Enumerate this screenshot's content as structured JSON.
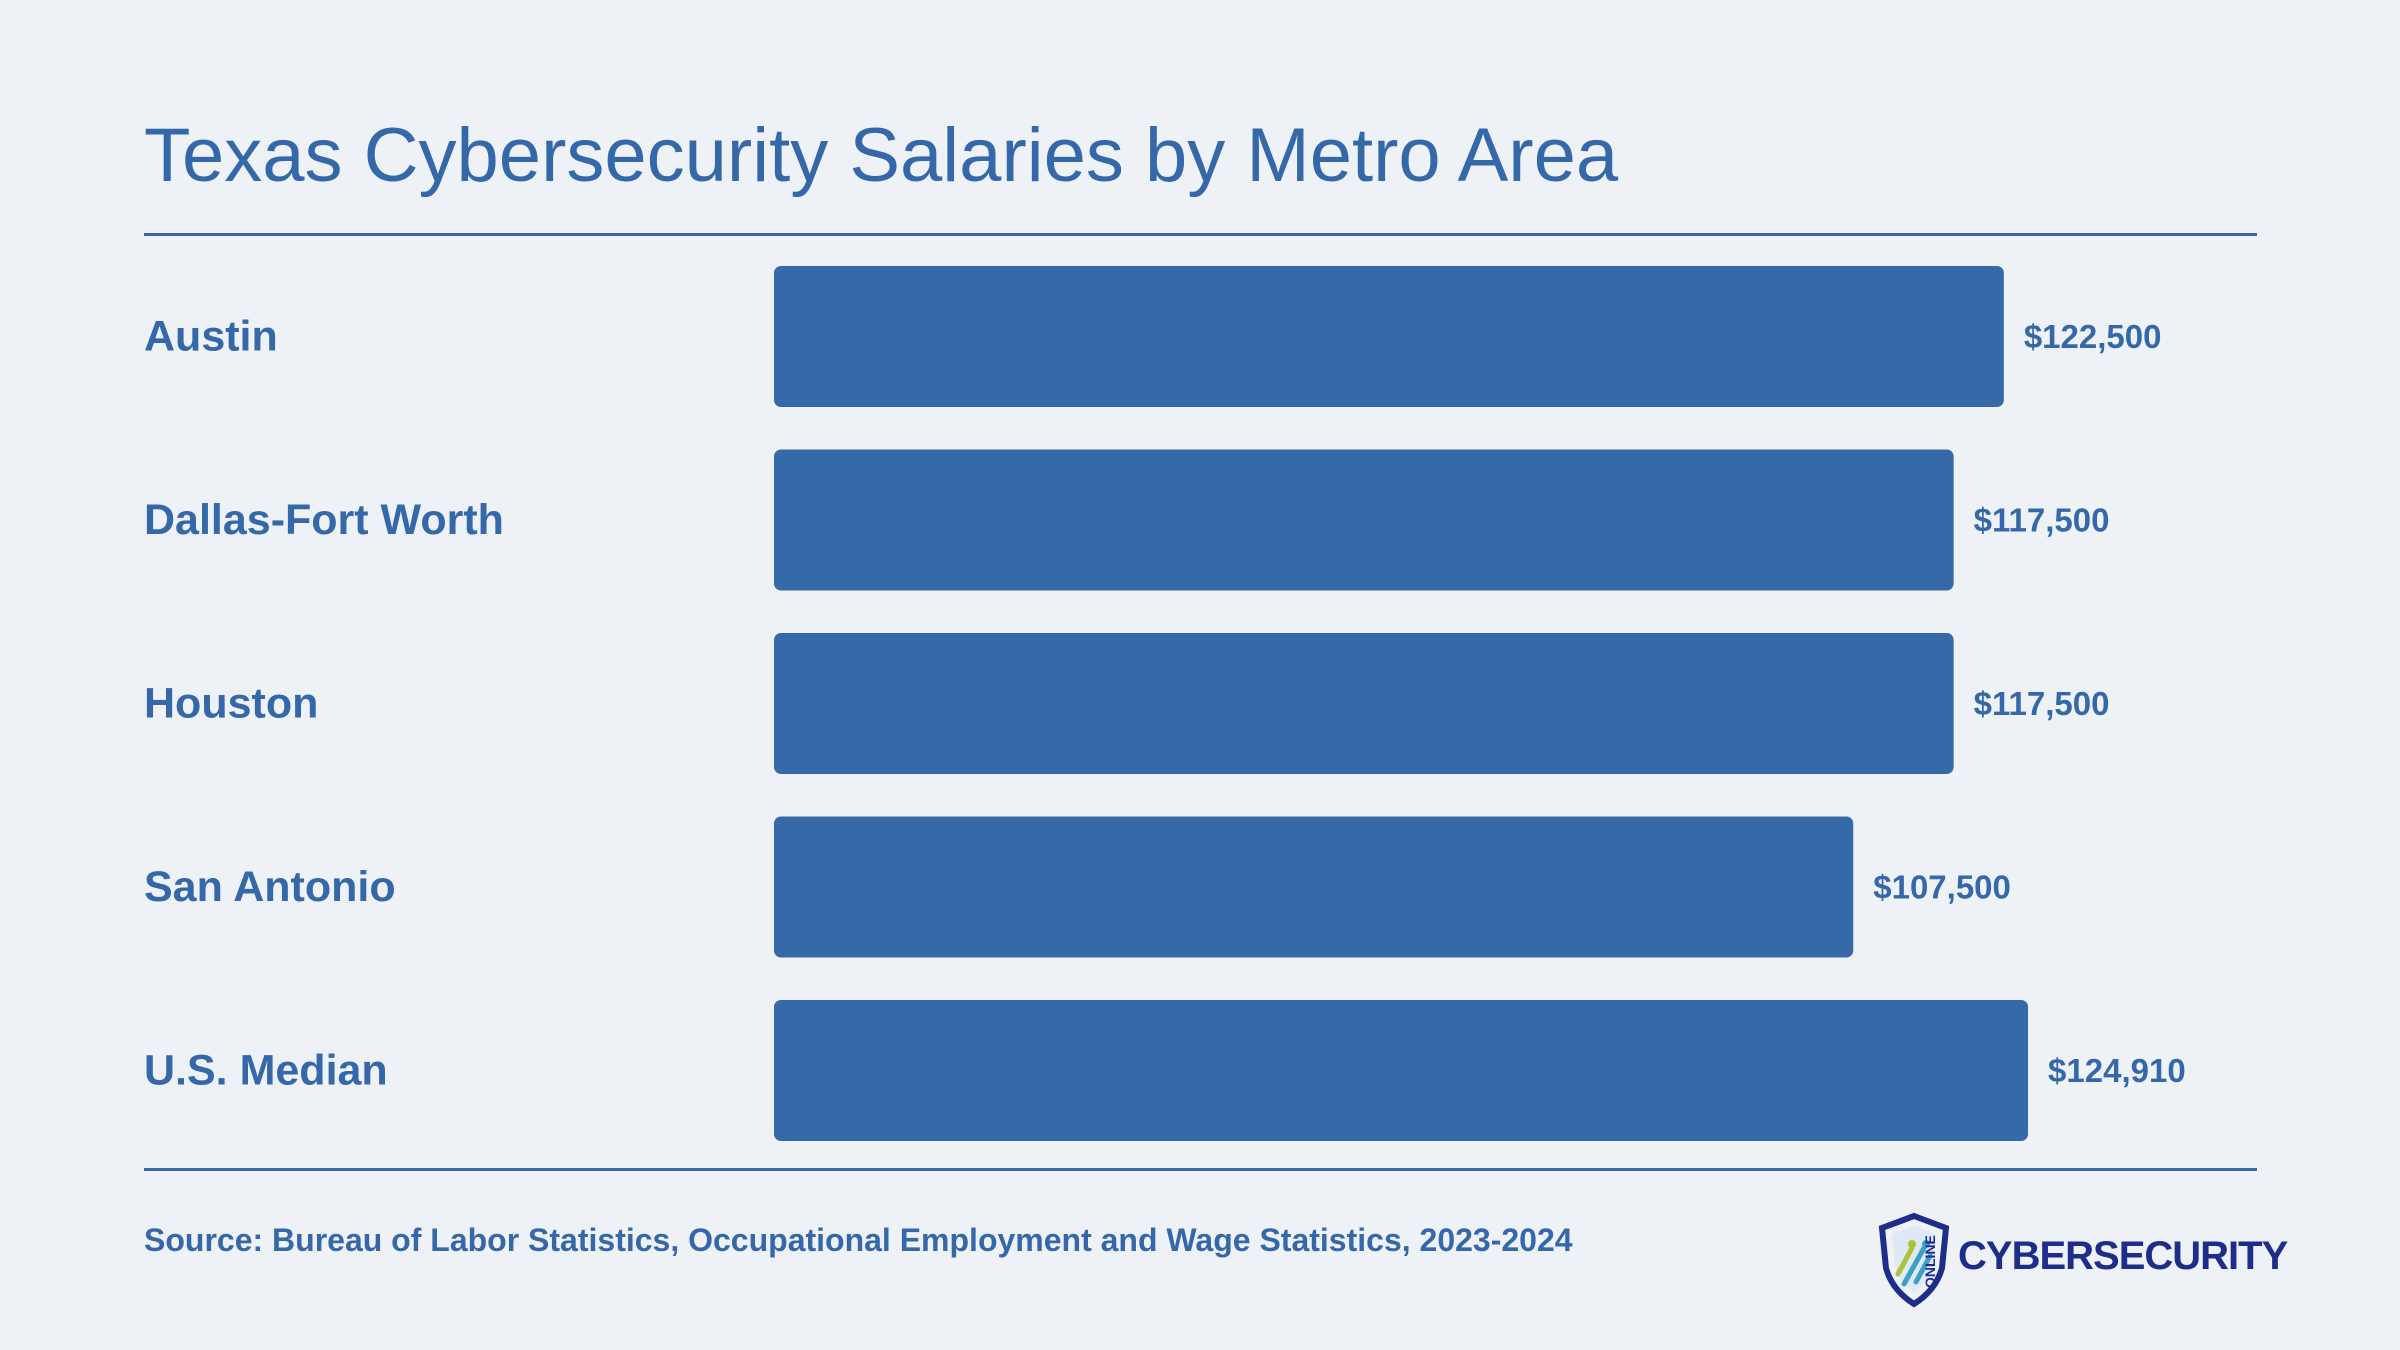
{
  "chart_data": {
    "type": "bar",
    "orientation": "horizontal",
    "title": "Texas Cybersecurity Salaries by Metro Area",
    "categories": [
      "Austin",
      "Dallas-Fort Worth",
      "Houston",
      "San Antonio",
      "U.S. Median"
    ],
    "values": [
      122500,
      117500,
      117500,
      107500,
      124910
    ],
    "value_labels": [
      "$122,500",
      "$117,500",
      "$117,500",
      "$107,500",
      "$124,910"
    ],
    "xlim": [
      0,
      126500
    ],
    "grid": false,
    "bar_color": "#3569a8"
  },
  "source": "Source: Bureau of Labor Statistics, Occupational Employment and Wage Statistics, 2023-2024",
  "logo": {
    "word": "CYBERSECURITY",
    "small": "ONLINE",
    "icon": "shield-icon"
  },
  "colors": {
    "background": "#eef2f7",
    "accent": "#3468a8",
    "logo": "#1e2d8a"
  }
}
